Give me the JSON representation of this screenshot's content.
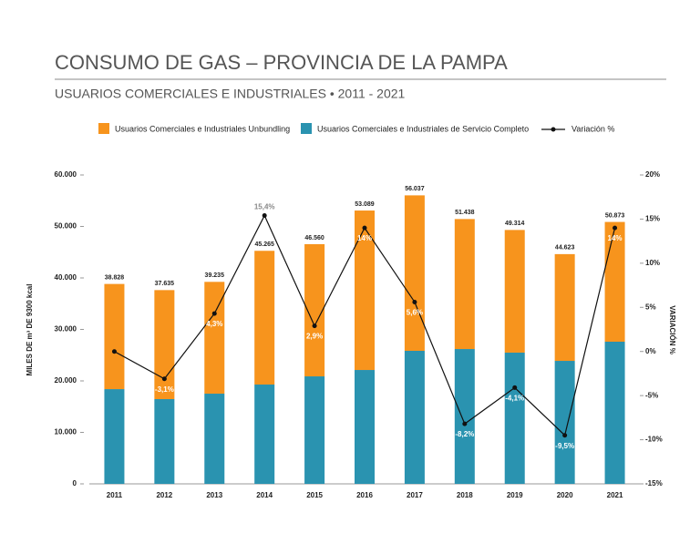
{
  "chart_data": {
    "type": "bar",
    "title": "CONSUMO DE GAS – PROVINCIA DE LA PAMPA",
    "subtitle": "USUARIOS COMERCIALES E INDUSTRIALES • 2011 - 2021",
    "ylabel": "MILES DE m³ DE 9300 kcal",
    "y2label": "VARIACIÓN %",
    "categories": [
      "2011",
      "2012",
      "2013",
      "2014",
      "2015",
      "2016",
      "2017",
      "2018",
      "2019",
      "2020",
      "2021"
    ],
    "series": [
      {
        "name": "Usuarios Comerciales e Industriales de Servicio Completo",
        "color": "#2a93b0",
        "values": [
          18400,
          16460,
          17520,
          19290,
          20880,
          22120,
          25840,
          26190,
          25490,
          23890,
          27610
        ]
      },
      {
        "name": "Usuarios Comerciales e Industriales Unbundling",
        "color": "#f7941d",
        "values": [
          20428,
          21175,
          21715,
          25975,
          25680,
          30969,
          30197,
          25248,
          23824,
          20733,
          23263
        ]
      },
      {
        "name": "Variación %",
        "color": "#111111",
        "type": "line",
        "axis": "y2",
        "values": [
          0,
          -3.1,
          4.3,
          15.4,
          2.9,
          14,
          5.6,
          -8.2,
          -4.1,
          -9.5,
          14
        ],
        "value_labels": [
          null,
          "-3,1%",
          "4,3%",
          "15,4%",
          "2,9%",
          "14%",
          "5,6%",
          "-8,2%",
          "-4,1%",
          "-9,5%",
          "14%"
        ]
      }
    ],
    "totals": [
      38828,
      37635,
      39235,
      45265,
      46560,
      53089,
      56037,
      51438,
      49314,
      44623,
      50873
    ],
    "total_labels": [
      "38.828",
      "37.635",
      "39.235",
      "45.265",
      "46.560",
      "53.089",
      "56.037",
      "51.438",
      "49.314",
      "44.623",
      "50.873"
    ],
    "ylim": [
      0,
      60000
    ],
    "yticks": [
      0,
      {
        "value": 10000,
        "label": "10.000"
      },
      {
        "value": 20000,
        "label": "20.000"
      },
      {
        "value": 30000,
        "label": "30.000"
      },
      {
        "value": 40000,
        "label": "40.000"
      },
      {
        "value": 50000,
        "label": "50.000"
      },
      {
        "value": 60000,
        "label": "60.000"
      }
    ],
    "y2lim": [
      -15,
      20
    ],
    "y2ticks": [
      {
        "value": -15,
        "label": "-15%"
      },
      {
        "value": -10,
        "label": "-10%"
      },
      {
        "value": -5,
        "label": "-5%"
      },
      {
        "value": 0,
        "label": "0%"
      },
      {
        "value": 5,
        "label": "5%"
      },
      {
        "value": 10,
        "label": "10%"
      },
      {
        "value": 15,
        "label": "15%"
      },
      {
        "value": 20,
        "label": "20%"
      }
    ],
    "legend": "top"
  }
}
